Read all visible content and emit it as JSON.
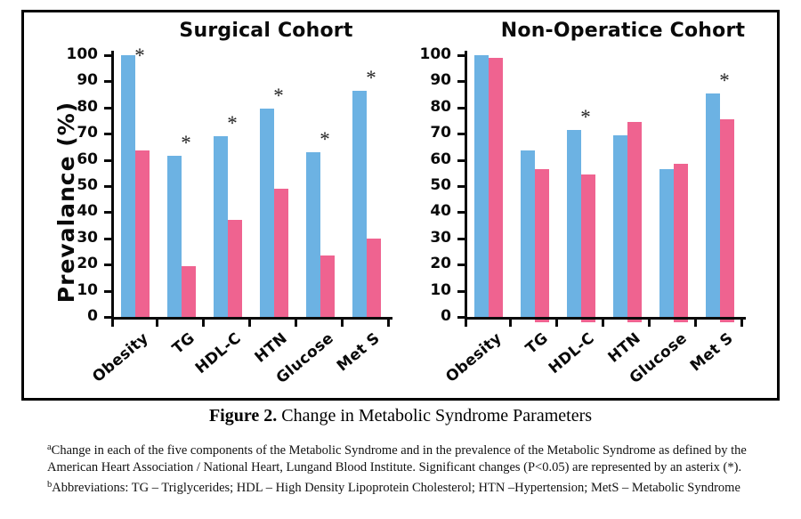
{
  "figure": {
    "caption_label": "Figure 2.",
    "caption_title": " Change in Metabolic Syndrome Parameters"
  },
  "footnotes": {
    "a": {
      "sup": "a",
      "lines": [
        "Change in each of the five components of the Metabolic Syndrome and in the prevalence of the Metabolic Syndrome as defined by the",
        "American Heart Association / National Heart, Lungand Blood Institute. Significant changes (P<0.05) are represented by an asterix (*)."
      ]
    },
    "b": {
      "sup": "b",
      "lines": [
        "Abbreviations: TG – Triglycerides; HDL – High Density Lipoprotein Cholesterol; HTN –Hypertension; MetS – Metabolic Syndrome"
      ]
    }
  },
  "colors": {
    "bar_blue": "#6CB2E3",
    "bar_pink": "#EF6390",
    "axis": "#0a0a0a"
  },
  "chart_data": [
    {
      "type": "bar",
      "title": "Surgical Cohort",
      "ylabel": "Prevalance (%)",
      "xlabel": "",
      "ylim": [
        0,
        100
      ],
      "ytick_step": 10,
      "grid": false,
      "legend": "none",
      "categories": [
        "Obesity",
        "TG",
        "HDL-C",
        "HTN",
        "Glucose",
        "Met S"
      ],
      "series": [
        {
          "name": "blue",
          "color": "#6CB2E3",
          "values": [
            100,
            61.5,
            69,
            79.5,
            63,
            86.5
          ]
        },
        {
          "name": "pink",
          "color": "#EF6390",
          "values": [
            63.5,
            19.5,
            37,
            49,
            23.5,
            30
          ]
        }
      ],
      "significance_marker": "*",
      "significant": [
        true,
        true,
        true,
        true,
        true,
        true
      ]
    },
    {
      "type": "bar",
      "title": "Non-Operatice Cohort",
      "ylabel": "",
      "xlabel": "",
      "ylim": [
        0,
        100
      ],
      "ytick_step": 10,
      "grid": false,
      "legend": "none",
      "categories": [
        "Obesity",
        "TG",
        "HDL-C",
        "HTN",
        "Glucose",
        "Met S"
      ],
      "series": [
        {
          "name": "blue",
          "color": "#6CB2E3",
          "values": [
            100,
            63.5,
            71.5,
            69.5,
            56.5,
            85.5
          ]
        },
        {
          "name": "pink",
          "color": "#EF6390",
          "values": [
            99,
            56.5,
            54.5,
            74.5,
            58.5,
            75.5
          ]
        }
      ],
      "significance_marker": "*",
      "significant": [
        false,
        false,
        true,
        false,
        false,
        true
      ]
    }
  ]
}
